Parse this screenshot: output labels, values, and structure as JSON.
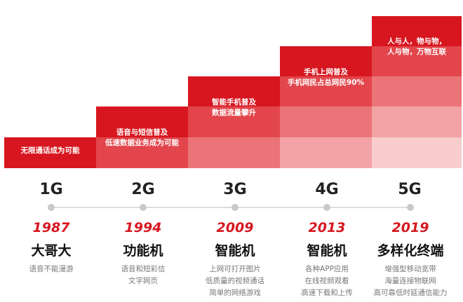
{
  "colors": {
    "accent": "#d7161f",
    "text_dark": "#222222",
    "text_gray": "#777777",
    "line": "#dddddd",
    "dot": "#c9c9c9"
  },
  "generations": [
    {
      "gen": "1G",
      "step_lines": [
        "无限通话成为可能"
      ],
      "year": "1987",
      "device": "大哥大",
      "desc": [
        "语音不能漫游"
      ]
    },
    {
      "gen": "2G",
      "step_lines": [
        "语音与短信普及",
        "低速数据业务成为可能"
      ],
      "year": "1994",
      "device": "功能机",
      "desc": [
        "语音和短彩信",
        "文字网页"
      ]
    },
    {
      "gen": "3G",
      "step_lines": [
        "智能手机普及",
        "数据流量攀升"
      ],
      "year": "2009",
      "device": "智能机",
      "desc": [
        "上网可打开图片",
        "低质量的视频通话",
        "简单的网络游戏"
      ]
    },
    {
      "gen": "4G",
      "step_lines": [
        "手机上网普及",
        "手机网民占总网民90%"
      ],
      "year": "2013",
      "device": "智能机",
      "desc": [
        "各种APP应用",
        "在线视频观看",
        "高速下载和上传"
      ]
    },
    {
      "gen": "5G",
      "step_lines": [
        "人与人，物与物，",
        "人与物，万物互联"
      ],
      "year": "2019",
      "device": "多样化终端",
      "desc": [
        "增强型移动宽带",
        "海量连接物联网",
        "高可靠低时延通信能力"
      ]
    }
  ]
}
